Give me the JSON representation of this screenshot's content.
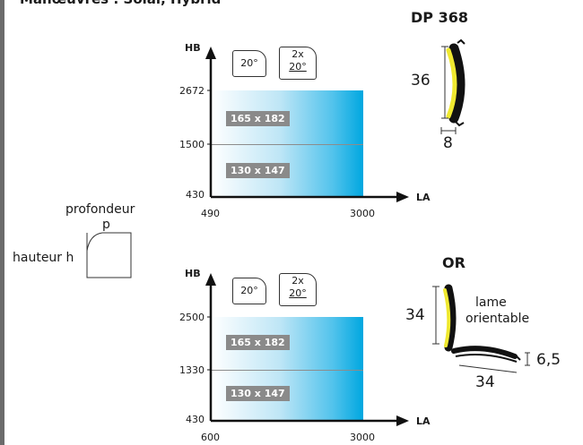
{
  "heading": "Manœuvres : Solar, Hybrid",
  "cross_section": {
    "depth_label": "profondeur",
    "depth_symbol": "p",
    "height_label": "hauteur h"
  },
  "chart_top": {
    "y_axis_label": "HB",
    "x_axis_label": "LA",
    "y_ticks": [
      "2672",
      "1500",
      "430"
    ],
    "x_ticks": [
      "490",
      "3000"
    ],
    "angle_badges": [
      {
        "lines": [
          "20°"
        ]
      },
      {
        "lines": [
          "2x",
          "20°"
        ]
      }
    ],
    "zones": [
      "165 x 182",
      "130 x 147"
    ]
  },
  "chart_bottom": {
    "y_axis_label": "HB",
    "x_axis_label": "LA",
    "y_ticks": [
      "2500",
      "1330",
      "430"
    ],
    "x_ticks": [
      "600",
      "3000"
    ],
    "angle_badges": [
      {
        "lines": [
          "20°"
        ]
      },
      {
        "lines": [
          "2x",
          "20°"
        ]
      }
    ],
    "zones": [
      "165 x 182",
      "130 x 147"
    ]
  },
  "profile_dp368": {
    "title": "DP 368",
    "height": "36",
    "width": "8"
  },
  "profile_or": {
    "title": "OR",
    "height": "34",
    "note_line1": "lame",
    "note_line2": "orientable",
    "width": "34",
    "thickness": "6,5"
  },
  "colors": {
    "area_gradient_end": "#00a7e0",
    "zone_tag": "#8a8a8a",
    "profile_yellow": "#f0e930",
    "profile_black": "#1a1a1a"
  }
}
